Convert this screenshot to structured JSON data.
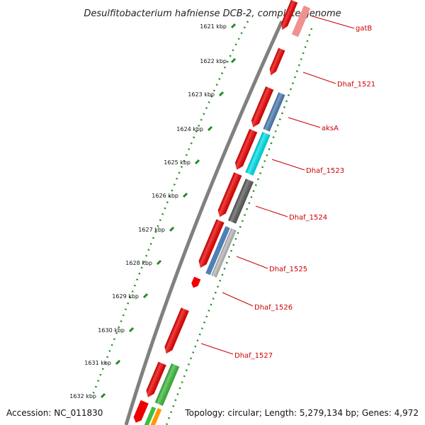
{
  "title": "Desulfitobacterium hafniense DCB-2, complete genome",
  "footer": {
    "accession": "Accession: NC_011830",
    "topology": "Topology: circular; Length: 5,279,134 bp; Genes: 4,972"
  },
  "colors": {
    "backbone": "#808080",
    "tick_dotted": "#228b22",
    "label": "#cc0000",
    "red": "#ee0000",
    "pink": "#f09090",
    "steelblue": "#4f7fb5",
    "cyan": "#00e5ee",
    "darkgray": "#5e5e5e",
    "lightgray": "#bdbdbd",
    "green": "#3fbf3f",
    "orange": "#ff9900"
  },
  "kbp_ticks": [
    {
      "label": "1621 kbp",
      "value": 1621
    },
    {
      "label": "1622 kbp",
      "value": 1622
    },
    {
      "label": "1623 kbp",
      "value": 1623
    },
    {
      "label": "1624 kbp",
      "value": 1624
    },
    {
      "label": "1625 kbp",
      "value": 1625
    },
    {
      "label": "1626 kbp",
      "value": 1626
    },
    {
      "label": "1627 kbp",
      "value": 1627
    },
    {
      "label": "1628 kbp",
      "value": 1628
    },
    {
      "label": "1629 kbp",
      "value": 1629
    },
    {
      "label": "1630 kbp",
      "value": 1630
    },
    {
      "label": "1631 kbp",
      "value": 1631
    },
    {
      "label": "1632 kbp",
      "value": 1632
    }
  ],
  "genes": [
    {
      "name": "gatB"
    },
    {
      "name": "Dhaf_1521"
    },
    {
      "name": "aksA"
    },
    {
      "name": "Dhaf_1523"
    },
    {
      "name": "Dhaf_1524"
    },
    {
      "name": "Dhaf_1525"
    },
    {
      "name": "Dhaf_1526"
    },
    {
      "name": "Dhaf_1527"
    }
  ]
}
